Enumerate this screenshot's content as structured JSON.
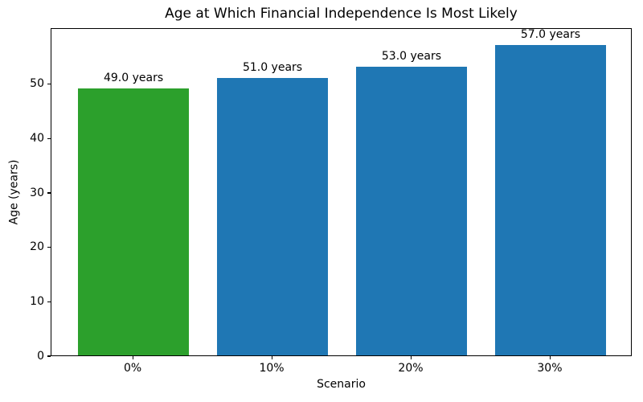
{
  "chart_data": {
    "type": "bar",
    "title": "Age at Which Financial Independence Is Most Likely",
    "xlabel": "Scenario",
    "ylabel": "Age (years)",
    "categories": [
      "0%",
      "10%",
      "20%",
      "30%"
    ],
    "values": [
      49.0,
      51.0,
      53.0,
      57.0
    ],
    "value_labels": [
      "49.0 years",
      "51.0 years",
      "53.0 years",
      "57.0 years"
    ],
    "bar_colors": [
      "#2ca02c",
      "#1f77b4",
      "#1f77b4",
      "#1f77b4"
    ],
    "yticks": [
      0,
      10,
      20,
      30,
      40,
      50
    ],
    "ylim": [
      0,
      60.3
    ],
    "xlim": [
      -0.59,
      3.59
    ],
    "bar_width_units": 0.8,
    "grid": false,
    "legend": "none",
    "text_color": "#000000",
    "background_color": "#ffffff",
    "spine_color": "#000000"
  }
}
